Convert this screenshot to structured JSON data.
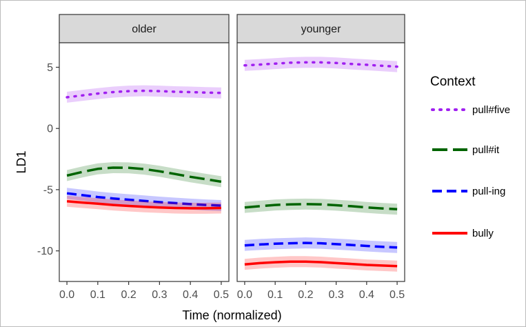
{
  "chart_data": {
    "type": "line",
    "facets": [
      "older",
      "younger"
    ],
    "xlabel": "Time (normalized)",
    "ylabel": "LD1",
    "xlim": [
      0,
      0.5
    ],
    "ylim": [
      -12.5,
      7
    ],
    "xticks": [
      0.0,
      0.1,
      0.2,
      0.3,
      0.4,
      0.5
    ],
    "xtick_labels": [
      "0.0",
      "0.1",
      "0.2",
      "0.3",
      "0.4",
      "0.5"
    ],
    "yticks": [
      5,
      0,
      -5,
      -10
    ],
    "ytick_labels": [
      "5",
      "0",
      "-5",
      "-10"
    ],
    "legend": {
      "title": "Context",
      "position": "right",
      "items": [
        "pull#five",
        "pull#it",
        "pull-ing",
        "bully"
      ]
    },
    "x": [
      0.0,
      0.05,
      0.1,
      0.15,
      0.2,
      0.25,
      0.3,
      0.35,
      0.4,
      0.45,
      0.5
    ],
    "series": [
      {
        "name": "pull#five",
        "color": "#a020f0",
        "linestyle": "dotted",
        "values": {
          "older": [
            2.55,
            2.7,
            2.85,
            2.97,
            3.05,
            3.08,
            3.05,
            3.0,
            2.97,
            2.93,
            2.9
          ],
          "younger": [
            5.15,
            5.22,
            5.3,
            5.37,
            5.4,
            5.4,
            5.35,
            5.27,
            5.2,
            5.12,
            5.05
          ]
        }
      },
      {
        "name": "pull#it",
        "color": "#006400",
        "linestyle": "longdash",
        "values": {
          "older": [
            -3.85,
            -3.55,
            -3.3,
            -3.2,
            -3.22,
            -3.32,
            -3.5,
            -3.72,
            -3.95,
            -4.15,
            -4.35
          ],
          "younger": [
            -6.45,
            -6.35,
            -6.25,
            -6.2,
            -6.18,
            -6.2,
            -6.27,
            -6.35,
            -6.45,
            -6.53,
            -6.6
          ]
        }
      },
      {
        "name": "pull-ing",
        "color": "#0000ff",
        "linestyle": "dashed",
        "values": {
          "older": [
            -5.3,
            -5.45,
            -5.6,
            -5.72,
            -5.82,
            -5.92,
            -6.02,
            -6.1,
            -6.18,
            -6.25,
            -6.3
          ],
          "younger": [
            -9.55,
            -9.48,
            -9.42,
            -9.38,
            -9.35,
            -9.38,
            -9.45,
            -9.52,
            -9.6,
            -9.67,
            -9.72
          ]
        }
      },
      {
        "name": "bully",
        "color": "#ff0000",
        "linestyle": "solid",
        "values": {
          "older": [
            -5.95,
            -6.05,
            -6.15,
            -6.25,
            -6.33,
            -6.4,
            -6.45,
            -6.5,
            -6.52,
            -6.52,
            -6.5
          ],
          "younger": [
            -11.1,
            -11.0,
            -10.93,
            -10.88,
            -10.88,
            -10.92,
            -11.0,
            -11.07,
            -11.15,
            -11.2,
            -11.25
          ]
        }
      }
    ]
  }
}
